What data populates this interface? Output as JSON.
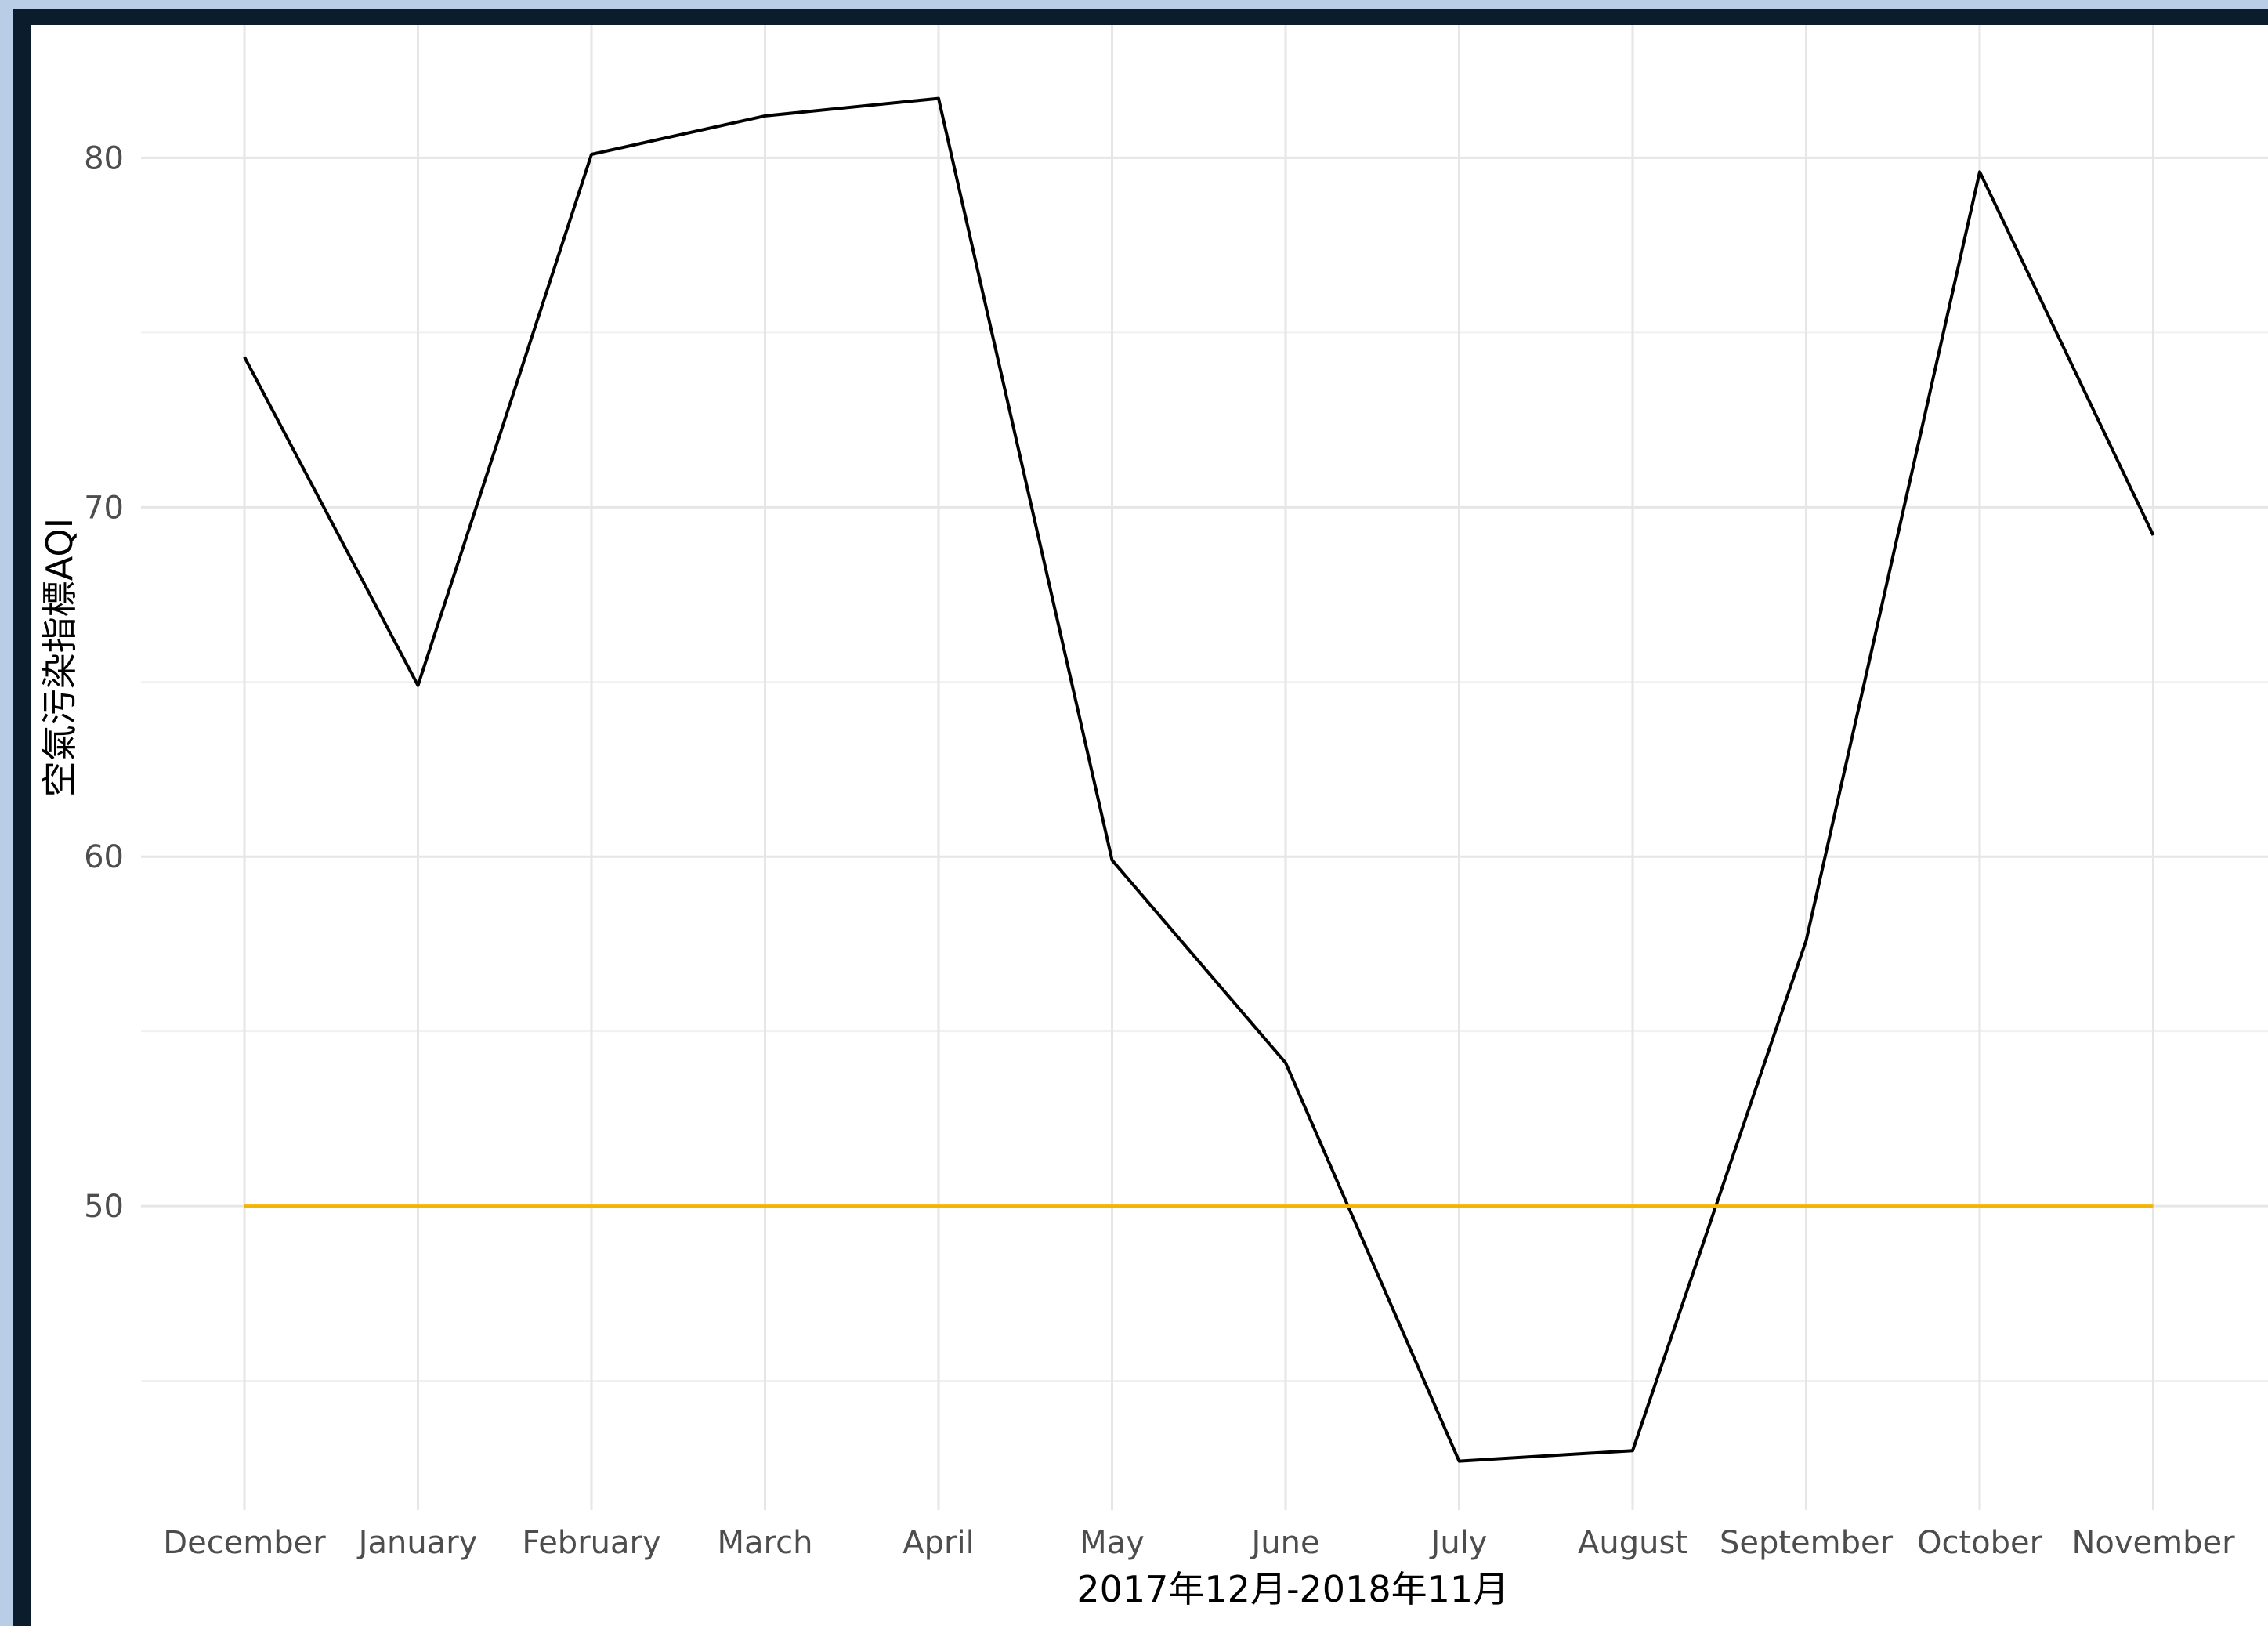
{
  "chart_data": {
    "type": "line",
    "title": "",
    "xlabel": "2017年12月-2018年11月",
    "ylabel": "空氣污染指標AQI",
    "categories": [
      "December",
      "January",
      "February",
      "March",
      "April",
      "May",
      "June",
      "July",
      "August",
      "September",
      "October",
      "November"
    ],
    "series": [
      {
        "values": [
          74.3,
          64.9,
          80.1,
          81.2,
          81.7,
          59.9,
          54.1,
          42.7,
          43.0,
          57.6,
          79.6,
          69.2
        ],
        "color": "#000000"
      },
      {
        "values": [
          50,
          50,
          50,
          50,
          50,
          50,
          50,
          50,
          50,
          50,
          50,
          50
        ],
        "color": "#f5b400"
      }
    ],
    "yticks": [
      50,
      60,
      70,
      80
    ],
    "ylim": [
      41.3,
      83.8
    ],
    "grid": true,
    "legend": "none"
  }
}
